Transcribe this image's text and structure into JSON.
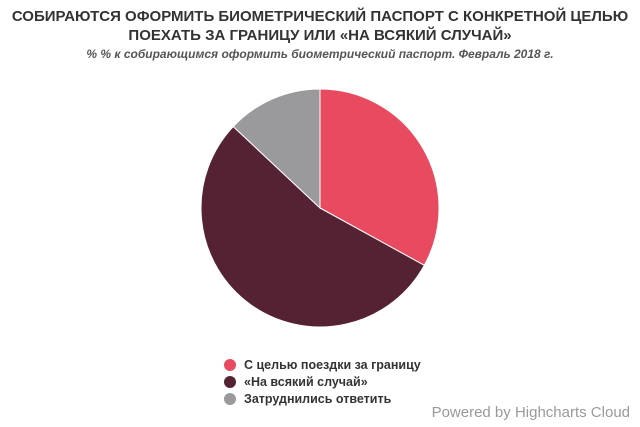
{
  "chart_data": {
    "type": "pie",
    "title": "СОБИРАЮТСЯ ОФОРМИТЬ БИОМЕТРИЧЕСКИЙ ПАСПОРТ С КОНКРЕТНОЙ ЦЕЛЬЮ ПОЕХАТЬ ЗА ГРАНИЦУ ИЛИ «НА ВСЯКИЙ СЛУЧАЙ»",
    "subtitle": "% % к собирающимся оформить биометрический паспорт. Февраль 2018 г.",
    "slices": [
      {
        "label": "С целью поездки за границу",
        "value": 33,
        "color": "#e84a60"
      },
      {
        "label": "«На всякий случай»",
        "value": 54,
        "color": "#552233"
      },
      {
        "label": "Затруднились ответить",
        "value": 13,
        "color": "#9a9a9d"
      }
    ],
    "legend_position": "bottom"
  },
  "credits": "Powered by Highcharts Cloud"
}
